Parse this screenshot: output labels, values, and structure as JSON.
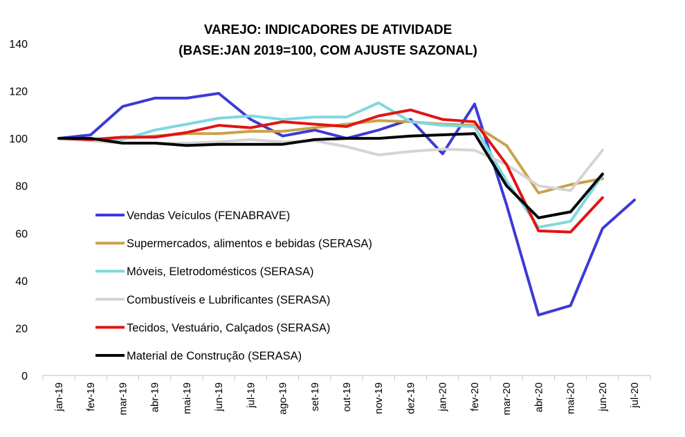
{
  "chart_data": {
    "type": "line",
    "title_line1": "VAREJO: INDICADORES DE ATIVIDADE",
    "title_line2": "(BASE:JAN 2019=100, COM AJUSTE SAZONAL)",
    "xlabel": "",
    "ylabel": "",
    "ylim": [
      0,
      140
    ],
    "yticks": [
      0,
      20,
      40,
      60,
      80,
      100,
      120,
      140
    ],
    "grid": false,
    "legend_position": "left-bottom",
    "categories": [
      "jan-19",
      "fev-19",
      "mar-19",
      "abr-19",
      "mai-19",
      "jun-19",
      "jul-19",
      "ago-19",
      "set-19",
      "out-19",
      "nov-19",
      "dez-19",
      "jan-20",
      "fev-20",
      "mar-20",
      "abr-20",
      "mai-20",
      "jun-20",
      "jul-20"
    ],
    "series": [
      {
        "name": "Vendas Veículos (FENABRAVE)",
        "color": "#3b3bd6",
        "values": [
          100,
          101.5,
          113.5,
          117,
          117,
          119,
          108,
          101,
          103.5,
          100,
          103.5,
          108,
          93.5,
          114.5,
          72,
          25.5,
          29.5,
          62,
          74
        ]
      },
      {
        "name": "Supermercados, alimentos e bebidas (SERASA)",
        "color": "#c9a24a",
        "values": [
          100,
          99.5,
          100,
          101,
          102,
          102,
          103,
          103,
          104.5,
          106,
          107.5,
          107,
          106,
          105.5,
          97,
          77,
          80.5,
          83,
          null
        ]
      },
      {
        "name": "Móveis, Eletrodomésticos (SERASA)",
        "color": "#7fd8de",
        "values": [
          100,
          99.5,
          99.5,
          103.5,
          106,
          108.5,
          109.5,
          108,
          109,
          109,
          115,
          107,
          105.5,
          105,
          82,
          62.5,
          65,
          84.5,
          null
        ]
      },
      {
        "name": "Combustíveis e Lubrificantes (SERASA)",
        "color": "#d4d4d4",
        "values": [
          100,
          99,
          98,
          98,
          98,
          98.5,
          99.5,
          98.5,
          99,
          96.5,
          93,
          94.5,
          95.5,
          95,
          89,
          80,
          78,
          95,
          null
        ]
      },
      {
        "name": "Tecidos, Vestuário, Calçados (SERASA)",
        "color": "#e01414",
        "values": [
          100,
          99.5,
          100.5,
          100.5,
          102.5,
          105.5,
          104.5,
          107,
          106,
          105,
          109.5,
          112,
          108,
          107,
          89,
          61,
          60.5,
          75,
          null
        ]
      },
      {
        "name": "Material de Construção (SERASA)",
        "color": "#000000",
        "values": [
          100,
          100,
          98,
          98,
          97,
          97.5,
          97.5,
          97.5,
          99.5,
          100,
          100,
          101,
          101.5,
          102,
          80,
          66.5,
          69,
          85,
          null
        ]
      }
    ]
  }
}
